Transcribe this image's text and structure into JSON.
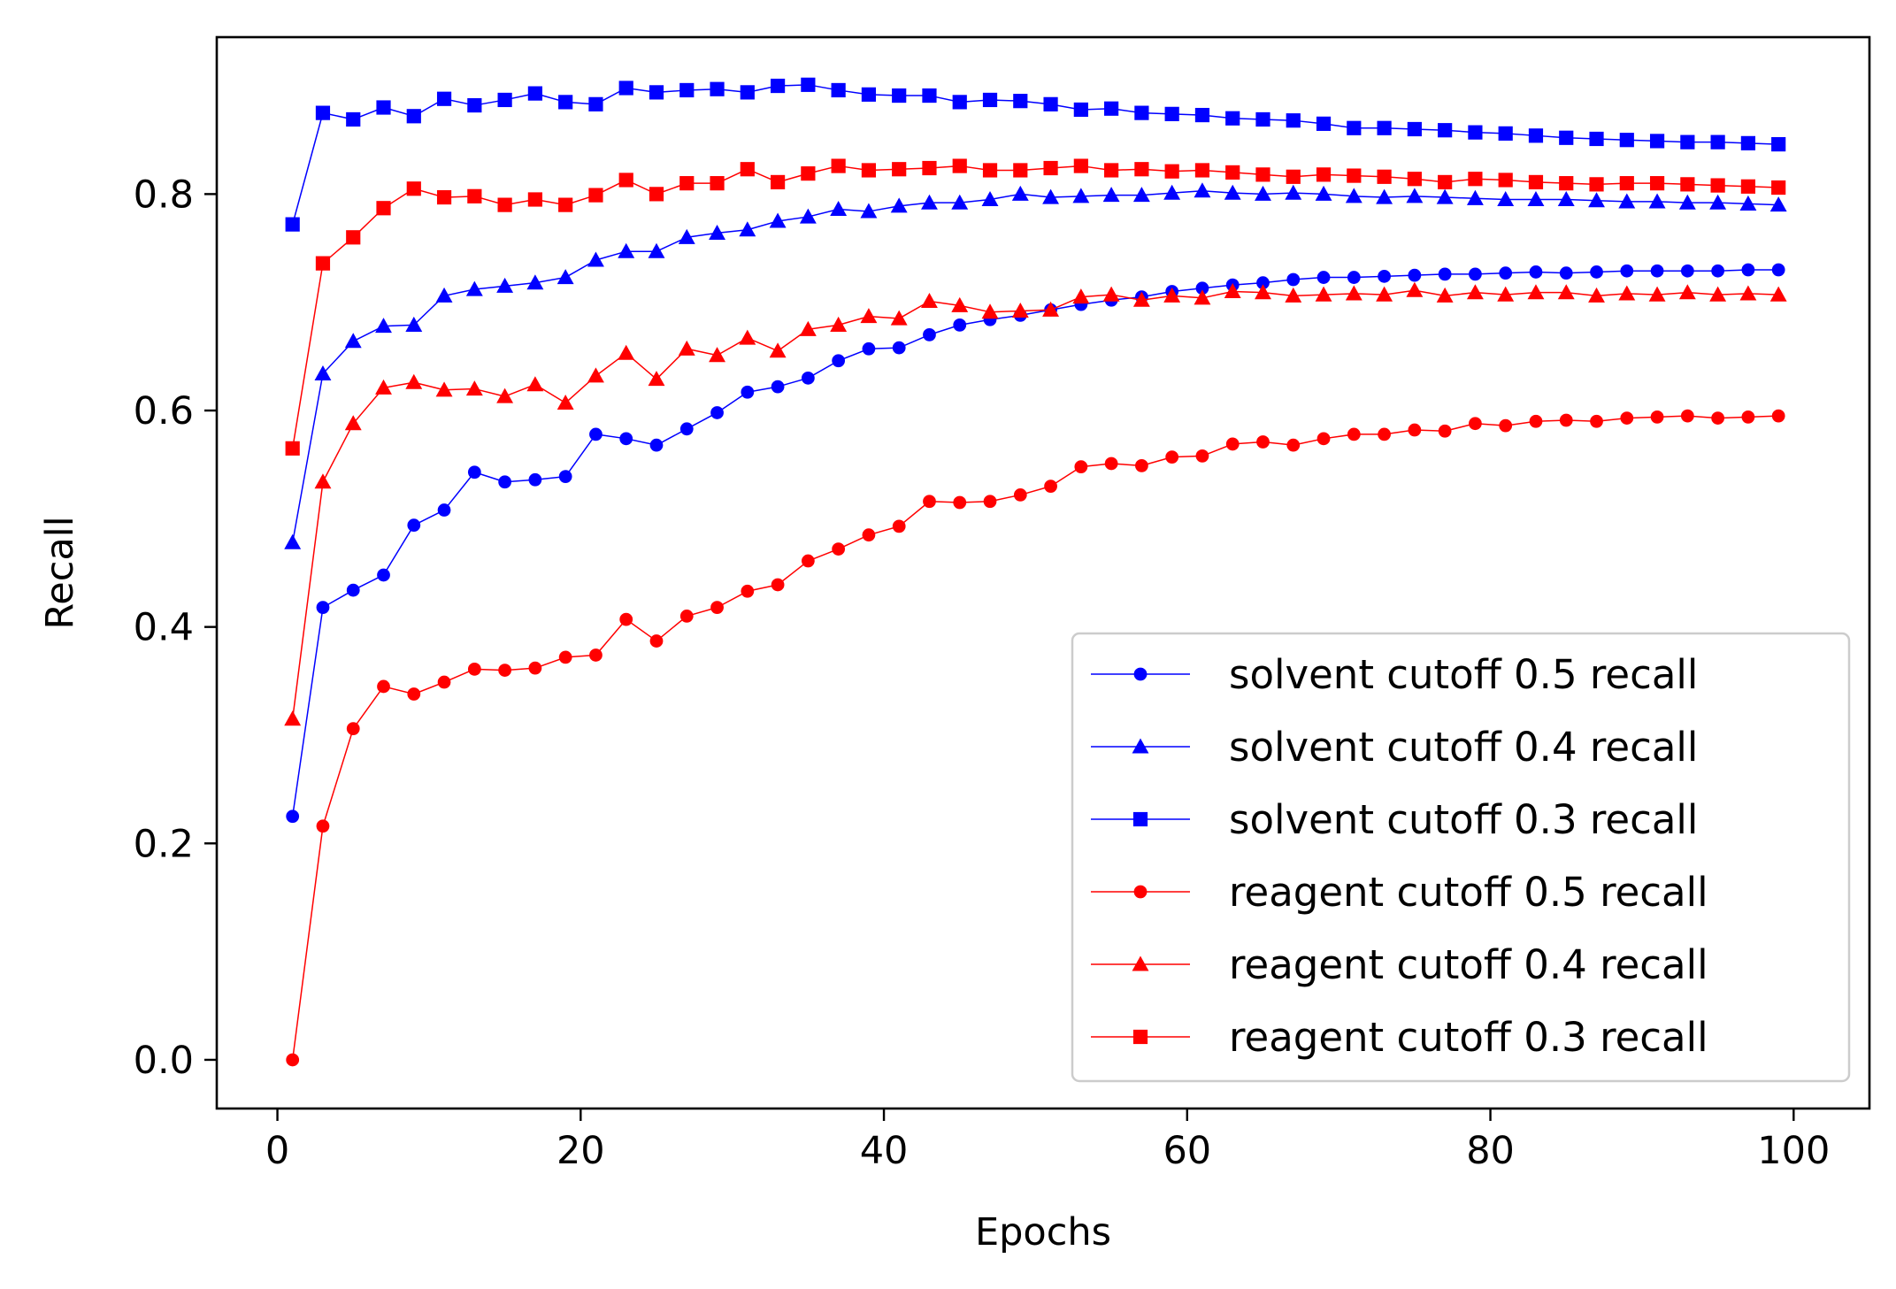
{
  "chart_data": {
    "type": "line",
    "title": "",
    "xlabel": "Epochs",
    "ylabel": "Recall",
    "xlim": [
      -4,
      105
    ],
    "ylim": [
      -0.045,
      0.945
    ],
    "xticks": [
      0,
      20,
      40,
      60,
      80,
      100
    ],
    "yticks": [
      0.0,
      0.2,
      0.4,
      0.6,
      0.8
    ],
    "xtick_labels": [
      "0",
      "20",
      "40",
      "60",
      "80",
      "100"
    ],
    "ytick_labels": [
      "0.0",
      "0.2",
      "0.4",
      "0.6",
      "0.8"
    ],
    "grid": false,
    "legend_position": "lower-right",
    "x": [
      1,
      3,
      5,
      7,
      9,
      11,
      13,
      15,
      17,
      19,
      21,
      23,
      25,
      27,
      29,
      31,
      33,
      35,
      37,
      39,
      41,
      43,
      45,
      47,
      49,
      51,
      53,
      55,
      57,
      59,
      61,
      63,
      65,
      67,
      69,
      71,
      73,
      75,
      77,
      79,
      81,
      83,
      85,
      87,
      89,
      91,
      93,
      95,
      97,
      99
    ],
    "series": [
      {
        "name": "solvent cutoff 0.5 recall",
        "color": "#0000ff",
        "marker": "circle",
        "values": [
          0.225,
          0.418,
          0.434,
          0.448,
          0.494,
          0.508,
          0.543,
          0.534,
          0.536,
          0.539,
          0.578,
          0.574,
          0.568,
          0.583,
          0.598,
          0.617,
          0.622,
          0.63,
          0.646,
          0.657,
          0.658,
          0.67,
          0.679,
          0.684,
          0.688,
          0.693,
          0.698,
          0.702,
          0.705,
          0.71,
          0.713,
          0.716,
          0.718,
          0.721,
          0.723,
          0.723,
          0.724,
          0.725,
          0.726,
          0.726,
          0.727,
          0.728,
          0.727,
          0.728,
          0.729,
          0.729,
          0.729,
          0.729,
          0.73,
          0.73
        ]
      },
      {
        "name": "solvent cutoff 0.4 recall",
        "color": "#0000ff",
        "marker": "triangle",
        "values": [
          0.478,
          0.634,
          0.664,
          0.678,
          0.679,
          0.706,
          0.712,
          0.715,
          0.718,
          0.723,
          0.739,
          0.747,
          0.747,
          0.76,
          0.764,
          0.767,
          0.775,
          0.779,
          0.786,
          0.784,
          0.789,
          0.792,
          0.792,
          0.795,
          0.8,
          0.797,
          0.798,
          0.799,
          0.799,
          0.801,
          0.803,
          0.801,
          0.8,
          0.801,
          0.8,
          0.798,
          0.797,
          0.798,
          0.797,
          0.796,
          0.795,
          0.795,
          0.795,
          0.794,
          0.793,
          0.793,
          0.792,
          0.792,
          0.791,
          0.79
        ]
      },
      {
        "name": "solvent cutoff 0.3 recall",
        "color": "#0000ff",
        "marker": "square",
        "values": [
          0.772,
          0.875,
          0.869,
          0.88,
          0.872,
          0.888,
          0.882,
          0.887,
          0.893,
          0.885,
          0.883,
          0.898,
          0.894,
          0.896,
          0.897,
          0.894,
          0.9,
          0.901,
          0.896,
          0.892,
          0.891,
          0.891,
          0.885,
          0.887,
          0.886,
          0.883,
          0.878,
          0.879,
          0.875,
          0.874,
          0.873,
          0.87,
          0.869,
          0.868,
          0.865,
          0.861,
          0.861,
          0.86,
          0.859,
          0.857,
          0.856,
          0.854,
          0.852,
          0.851,
          0.85,
          0.849,
          0.848,
          0.848,
          0.847,
          0.846
        ]
      },
      {
        "name": "reagent cutoff 0.5 recall",
        "color": "#ff0000",
        "marker": "circle",
        "values": [
          0.0,
          0.216,
          0.306,
          0.345,
          0.338,
          0.349,
          0.361,
          0.36,
          0.362,
          0.372,
          0.374,
          0.407,
          0.387,
          0.41,
          0.418,
          0.433,
          0.439,
          0.461,
          0.472,
          0.485,
          0.493,
          0.516,
          0.515,
          0.516,
          0.522,
          0.53,
          0.548,
          0.551,
          0.549,
          0.557,
          0.558,
          0.569,
          0.571,
          0.568,
          0.574,
          0.578,
          0.578,
          0.582,
          0.581,
          0.588,
          0.586,
          0.59,
          0.591,
          0.59,
          0.593,
          0.594,
          0.595,
          0.593,
          0.594,
          0.595
        ]
      },
      {
        "name": "reagent cutoff 0.4 recall",
        "color": "#ff0000",
        "marker": "triangle",
        "values": [
          0.315,
          0.534,
          0.588,
          0.621,
          0.626,
          0.619,
          0.62,
          0.613,
          0.624,
          0.607,
          0.632,
          0.653,
          0.629,
          0.657,
          0.651,
          0.667,
          0.655,
          0.675,
          0.679,
          0.687,
          0.685,
          0.701,
          0.697,
          0.691,
          0.692,
          0.693,
          0.705,
          0.707,
          0.702,
          0.706,
          0.704,
          0.71,
          0.709,
          0.706,
          0.707,
          0.708,
          0.707,
          0.711,
          0.706,
          0.709,
          0.707,
          0.709,
          0.709,
          0.706,
          0.708,
          0.707,
          0.709,
          0.707,
          0.708,
          0.707
        ]
      },
      {
        "name": "reagent cutoff 0.3 recall",
        "color": "#ff0000",
        "marker": "square",
        "values": [
          0.565,
          0.736,
          0.76,
          0.787,
          0.805,
          0.797,
          0.798,
          0.79,
          0.795,
          0.79,
          0.799,
          0.813,
          0.8,
          0.81,
          0.81,
          0.823,
          0.811,
          0.819,
          0.826,
          0.822,
          0.823,
          0.824,
          0.826,
          0.822,
          0.822,
          0.824,
          0.826,
          0.822,
          0.823,
          0.821,
          0.822,
          0.82,
          0.818,
          0.816,
          0.818,
          0.817,
          0.816,
          0.814,
          0.811,
          0.814,
          0.813,
          0.811,
          0.81,
          0.809,
          0.81,
          0.81,
          0.809,
          0.808,
          0.807,
          0.806
        ]
      }
    ]
  }
}
